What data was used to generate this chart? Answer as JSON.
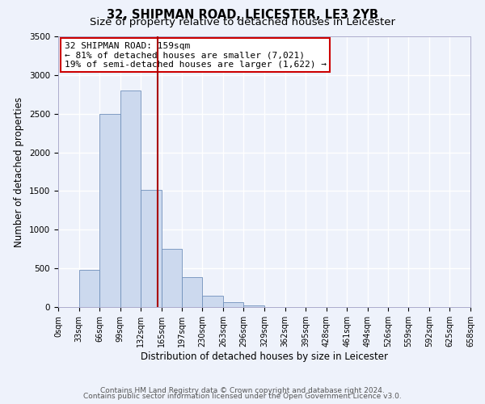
{
  "title1": "32, SHIPMAN ROAD, LEICESTER, LE3 2YB",
  "title2": "Size of property relative to detached houses in Leicester",
  "xlabel": "Distribution of detached houses by size in Leicester",
  "ylabel": "Number of detached properties",
  "bar_values": [
    0,
    480,
    2500,
    2800,
    1520,
    750,
    390,
    145,
    60,
    20,
    0,
    0,
    0,
    0,
    0,
    0,
    0,
    0,
    0,
    0
  ],
  "bin_edges": [
    0,
    33,
    66,
    99,
    132,
    165,
    197,
    230,
    263,
    296,
    329,
    362,
    395,
    428,
    461,
    494,
    526,
    559,
    592,
    625,
    658
  ],
  "tick_labels": [
    "0sqm",
    "33sqm",
    "66sqm",
    "99sqm",
    "132sqm",
    "165sqm",
    "197sqm",
    "230sqm",
    "263sqm",
    "296sqm",
    "329sqm",
    "362sqm",
    "395sqm",
    "428sqm",
    "461sqm",
    "494sqm",
    "526sqm",
    "559sqm",
    "592sqm",
    "625sqm",
    "658sqm"
  ],
  "property_size": 159,
  "vline_color": "#aa0000",
  "bar_fill": "#ccd9ee",
  "bar_edge": "#7090bb",
  "annotation_text": "32 SHIPMAN ROAD: 159sqm\n← 81% of detached houses are smaller (7,021)\n19% of semi-detached houses are larger (1,622) →",
  "annotation_box_color": "#ffffff",
  "annotation_box_edge": "#cc0000",
  "ylim": [
    0,
    3500
  ],
  "yticks": [
    0,
    500,
    1000,
    1500,
    2000,
    2500,
    3000,
    3500
  ],
  "footer1": "Contains HM Land Registry data © Crown copyright and database right 2024.",
  "footer2": "Contains public sector information licensed under the Open Government Licence v3.0.",
  "bg_color": "#eef2fb",
  "grid_color": "#ffffff",
  "title1_fontsize": 10.5,
  "title2_fontsize": 9.5,
  "annotation_fontsize": 8,
  "axis_label_fontsize": 8.5,
  "tick_fontsize": 7,
  "footer_fontsize": 6.5
}
